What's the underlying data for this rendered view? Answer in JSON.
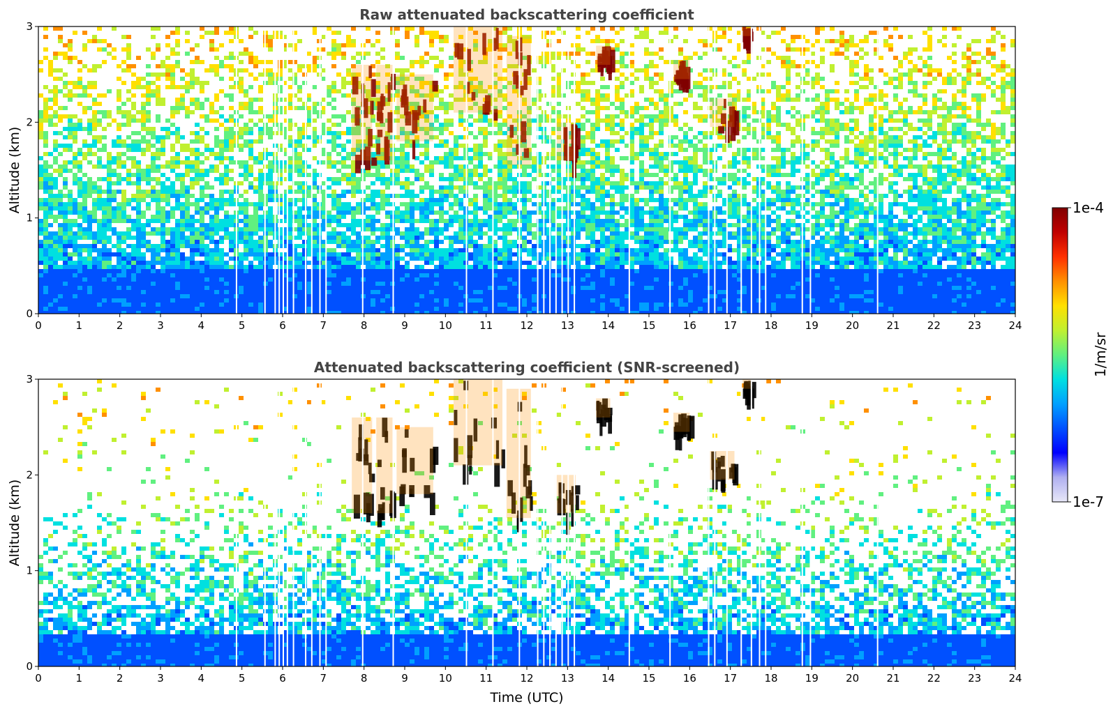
{
  "chart_data": [
    {
      "type": "heatmap",
      "title": "Raw attenuated backscattering coefficient",
      "xlabel": "",
      "ylabel": "Altitude (km)",
      "xlim": [
        0,
        24
      ],
      "ylim": [
        0,
        3
      ],
      "xticks": [
        "0",
        "1",
        "2",
        "3",
        "4",
        "5",
        "6",
        "7",
        "8",
        "9",
        "10",
        "11",
        "12",
        "13",
        "14",
        "15",
        "16",
        "17",
        "18",
        "19",
        "20",
        "21",
        "22",
        "23",
        "24"
      ],
      "yticks": [
        "0",
        "1",
        "2",
        "3"
      ],
      "boundary_layer_top_km": 0.5,
      "screened": false,
      "gap_times": [
        4.85,
        5.55,
        5.8,
        5.9,
        6.0,
        6.1,
        6.25,
        6.55,
        6.7,
        6.9,
        7.05,
        7.95,
        8.7,
        10.5,
        11.15,
        11.8,
        12.25,
        12.4,
        12.55,
        12.7,
        12.85,
        13.0,
        13.15,
        14.5,
        15.5,
        16.45,
        16.6,
        16.9,
        17.25,
        17.5,
        17.7,
        17.85,
        18.75,
        18.95,
        20.6
      ],
      "cloud_features": [
        {
          "t0": 7.7,
          "t1": 8.2,
          "z0": 1.6,
          "z1": 2.6,
          "value_log10": -4.1
        },
        {
          "t0": 8.3,
          "t1": 8.7,
          "z0": 1.6,
          "z1": 2.6,
          "value_log10": -4.1
        },
        {
          "t0": 8.8,
          "t1": 9.7,
          "z0": 1.8,
          "z1": 2.5,
          "value_log10": -4.1
        },
        {
          "t0": 10.2,
          "t1": 11.4,
          "z0": 2.1,
          "z1": 3.0,
          "value_log10": -4.0
        },
        {
          "t0": 11.5,
          "t1": 12.1,
          "z0": 1.55,
          "z1": 2.9,
          "value_log10": -4.1
        },
        {
          "t0": 12.7,
          "t1": 13.2,
          "z0": 1.6,
          "z1": 2.0,
          "value_log10": -4.1
        },
        {
          "t0": 13.7,
          "t1": 14.05,
          "z0": 2.6,
          "z1": 2.8,
          "value_log10": -4.2
        },
        {
          "t0": 15.6,
          "t1": 16.0,
          "z0": 2.45,
          "z1": 2.65,
          "value_log10": -4.2
        },
        {
          "t0": 16.5,
          "t1": 17.1,
          "z0": 1.95,
          "z1": 2.25,
          "value_log10": -4.1
        },
        {
          "t0": 17.3,
          "t1": 17.5,
          "z0": 2.9,
          "z1": 3.0,
          "value_log10": -4.1
        }
      ]
    },
    {
      "type": "heatmap",
      "title": "Attenuated backscattering coefficient (SNR-screened)",
      "xlabel": "Time (UTC)",
      "ylabel": "Altitude (km)",
      "xlim": [
        0,
        24
      ],
      "ylim": [
        0,
        3
      ],
      "xticks": [
        "0",
        "1",
        "2",
        "3",
        "4",
        "5",
        "6",
        "7",
        "8",
        "9",
        "10",
        "11",
        "12",
        "13",
        "14",
        "15",
        "16",
        "17",
        "18",
        "19",
        "20",
        "21",
        "22",
        "23",
        "24"
      ],
      "yticks": [
        "0",
        "1",
        "2",
        "3"
      ],
      "boundary_layer_top_km": 0.35,
      "screened": true,
      "gap_times": [
        4.85,
        5.55,
        5.8,
        5.9,
        6.0,
        6.1,
        6.25,
        6.55,
        6.7,
        6.9,
        7.05,
        7.95,
        8.7,
        10.5,
        11.15,
        11.8,
        12.25,
        12.4,
        12.55,
        12.7,
        12.85,
        13.0,
        13.15,
        14.5,
        15.5,
        16.45,
        16.6,
        16.9,
        17.25,
        17.5,
        17.7,
        17.85,
        18.75,
        18.95,
        20.6
      ],
      "cloud_features": [
        {
          "t0": 7.7,
          "t1": 8.2,
          "z0": 1.6,
          "z1": 2.6,
          "value_log10": -3.9
        },
        {
          "t0": 8.3,
          "t1": 8.7,
          "z0": 1.6,
          "z1": 2.6,
          "value_log10": -3.9
        },
        {
          "t0": 8.8,
          "t1": 9.7,
          "z0": 1.8,
          "z1": 2.5,
          "value_log10": -3.9
        },
        {
          "t0": 10.2,
          "t1": 11.4,
          "z0": 2.1,
          "z1": 3.0,
          "value_log10": -3.9
        },
        {
          "t0": 11.5,
          "t1": 12.1,
          "z0": 1.55,
          "z1": 2.9,
          "value_log10": -3.9
        },
        {
          "t0": 12.7,
          "t1": 13.2,
          "z0": 1.6,
          "z1": 2.0,
          "value_log10": -3.9
        },
        {
          "t0": 13.7,
          "t1": 14.05,
          "z0": 2.6,
          "z1": 2.8,
          "value_log10": -3.9
        },
        {
          "t0": 15.6,
          "t1": 16.0,
          "z0": 2.45,
          "z1": 2.65,
          "value_log10": -3.9
        },
        {
          "t0": 16.5,
          "t1": 17.1,
          "z0": 1.95,
          "z1": 2.25,
          "value_log10": -3.9
        },
        {
          "t0": 17.3,
          "t1": 17.5,
          "z0": 2.9,
          "z1": 3.0,
          "value_log10": -3.9
        }
      ]
    }
  ],
  "colorbar": {
    "label": "1/m/sr",
    "min_label": "1e-7",
    "max_label": "1e-4",
    "log10_range": [
      -7,
      -4
    ],
    "colors": [
      "#e8e8f8",
      "#b0b0f0",
      "#0000ff",
      "#0050ff",
      "#00a0ff",
      "#00e0e0",
      "#60f080",
      "#c0f030",
      "#ffe000",
      "#ff9000",
      "#ff3000",
      "#c00000",
      "#800000"
    ]
  }
}
